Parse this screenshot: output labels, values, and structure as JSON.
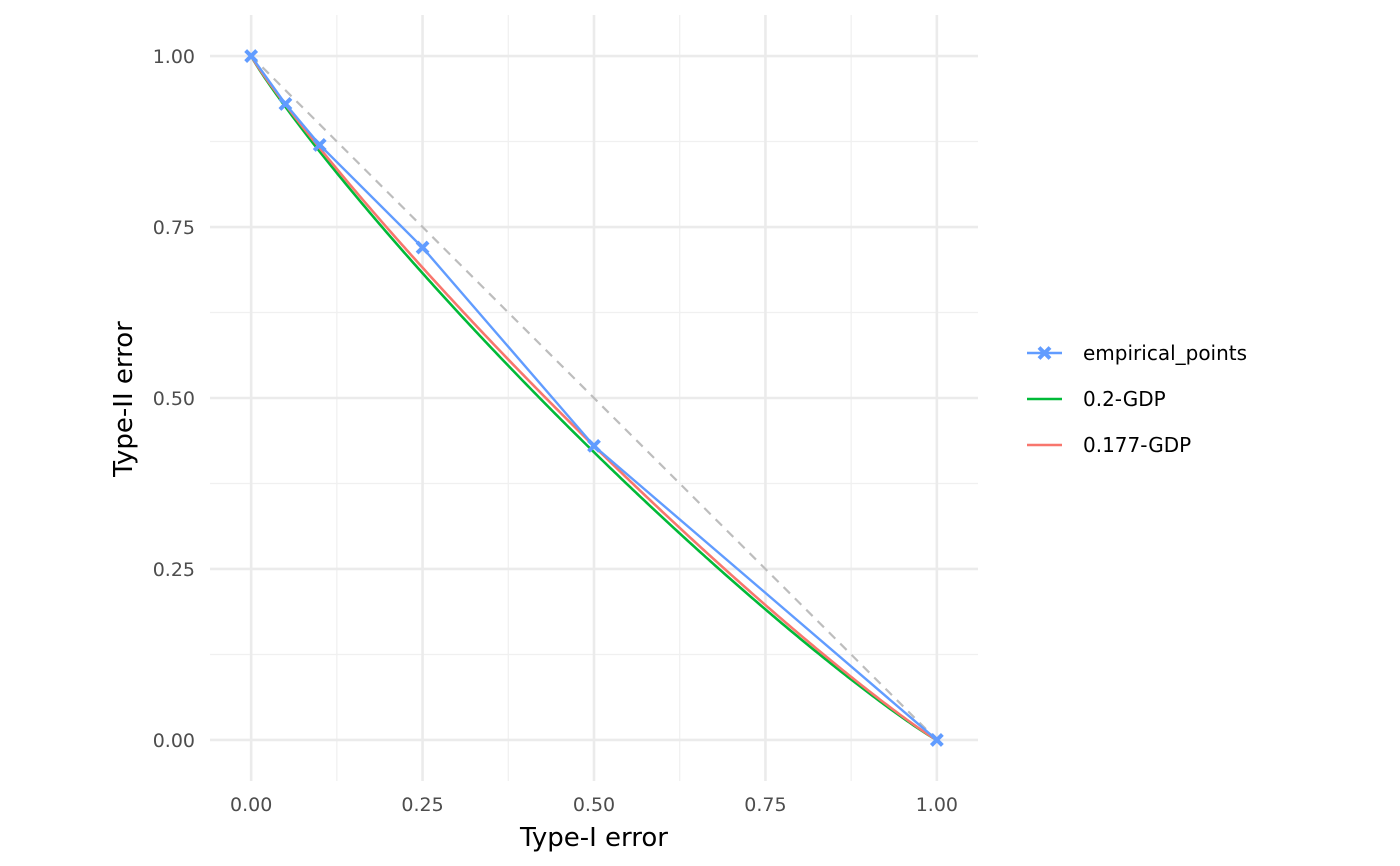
{
  "chart_data": {
    "type": "line",
    "title": "",
    "xlabel": "Type-I error",
    "ylabel": "Type-II error",
    "xlim": [
      -0.06,
      1.06
    ],
    "ylim": [
      -0.06,
      1.06
    ],
    "x_ticks": [
      0,
      0.25,
      0.5,
      0.75,
      1
    ],
    "y_ticks": [
      0,
      0.25,
      0.5,
      0.75,
      1
    ],
    "x_tick_labels": [
      "0.00",
      "0.25",
      "0.50",
      "0.75",
      "1.00"
    ],
    "y_tick_labels": [
      "0.00",
      "0.25",
      "0.50",
      "0.75",
      "1.00"
    ],
    "grid": true,
    "legend_position": "right",
    "reference_line": {
      "x": [
        0,
        1
      ],
      "y": [
        1,
        0
      ],
      "style": "dashed",
      "color": "#bdbdbd"
    },
    "series": [
      {
        "name": "empirical_points",
        "color": "#619CFF",
        "marker": "x",
        "x": [
          0,
          0.05,
          0.1,
          0.25,
          0.5,
          1
        ],
        "y": [
          1,
          0.93,
          0.87,
          0.72,
          0.43,
          0
        ]
      },
      {
        "name": "0.2-GDP",
        "color": "#00BA38",
        "mu": 0.2
      },
      {
        "name": "0.177-GDP",
        "color": "#F8766D",
        "mu": 0.177
      }
    ]
  }
}
